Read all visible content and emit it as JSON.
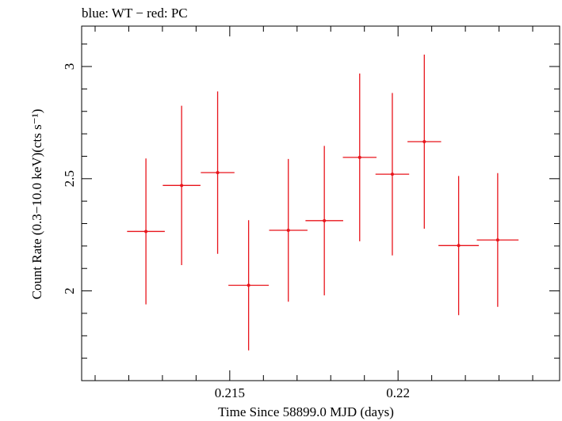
{
  "chart_data": {
    "type": "scatter",
    "title": "blue: WT − red: PC",
    "xlabel": "Time Since 58899.0 MJD (days)",
    "ylabel": "Count Rate (0.3−10.0 keV)(cts s⁻¹)",
    "xlim": [
      0.2106,
      0.2248
    ],
    "ylim": [
      1.6,
      3.18
    ],
    "x_ticks": [
      {
        "value": 0.215,
        "label": "0.215"
      },
      {
        "value": 0.22,
        "label": "0.22"
      }
    ],
    "y_ticks": [
      {
        "value": 2,
        "label": "2"
      },
      {
        "value": 2.5,
        "label": "2.5"
      },
      {
        "value": 3,
        "label": "3"
      }
    ],
    "grid": false,
    "series": [
      {
        "name": "PC",
        "color": "#e8141b",
        "points": [
          {
            "x": 0.21251,
            "xerr": 0.00056,
            "y": 2.265,
            "yerr": 0.325
          },
          {
            "x": 0.21357,
            "xerr": 0.00056,
            "y": 2.47,
            "yerr": 0.355
          },
          {
            "x": 0.21464,
            "xerr": 0.0005,
            "y": 2.527,
            "yerr": 0.362
          },
          {
            "x": 0.21556,
            "xerr": 0.0006,
            "y": 2.025,
            "yerr": 0.29
          },
          {
            "x": 0.21674,
            "xerr": 0.00057,
            "y": 2.27,
            "yerr": 0.318
          },
          {
            "x": 0.21781,
            "xerr": 0.00056,
            "y": 2.313,
            "yerr": 0.333
          },
          {
            "x": 0.21886,
            "xerr": 0.0005,
            "y": 2.595,
            "yerr": 0.374
          },
          {
            "x": 0.21983,
            "xerr": 0.0005,
            "y": 2.52,
            "yerr": 0.362
          },
          {
            "x": 0.22078,
            "xerr": 0.0005,
            "y": 2.665,
            "yerr": 0.388
          },
          {
            "x": 0.2218,
            "xerr": 0.0006,
            "y": 2.202,
            "yerr": 0.31
          },
          {
            "x": 0.22296,
            "xerr": 0.00062,
            "y": 2.227,
            "yerr": 0.298
          }
        ]
      }
    ]
  }
}
